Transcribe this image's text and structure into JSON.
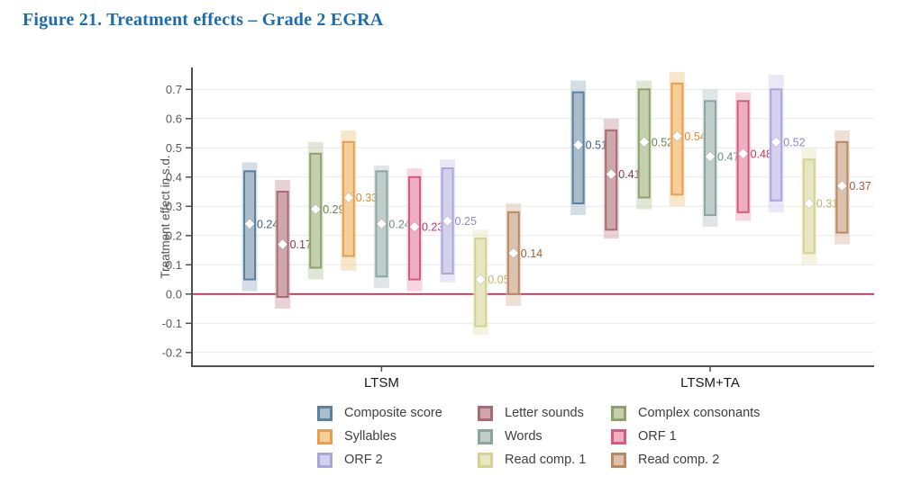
{
  "figure": {
    "title": "Figure 21. Treatment effects – Grade 2 EGRA",
    "title_color": "#1d6cad"
  },
  "chart_data": {
    "type": "bar",
    "subtype": "range-bars-with-point-estimates",
    "title": "Figure 21. Treatment effects – Grade 2 EGRA",
    "xlabel": "",
    "ylabel": "Treatment effect in s.d.",
    "ylim": [
      -0.25,
      0.78
    ],
    "yticks": [
      0.7,
      0.6,
      0.5,
      0.4,
      0.3,
      0.2,
      0.1,
      0.0,
      -0.1,
      -0.2
    ],
    "grid": "horizontal",
    "zero_line": {
      "value": 0.0,
      "color": "#bf3358"
    },
    "axis_color": "#4f4f4f",
    "grid_color": "#e9e9e9",
    "tick_label_color": "#595959",
    "group_label_color": "#1a1a1a",
    "legend_position": "bottom",
    "categories": [
      "LTSM",
      "LTSM+TA"
    ],
    "series": [
      {
        "name": "Composite score",
        "color": "#5b80a1",
        "fill": "#a9bdcb",
        "label_color": "#3d6183",
        "values": [
          {
            "group": "LTSM",
            "estimate": 0.24,
            "inner_ci": [
              0.05,
              0.42
            ],
            "outer_ci": [
              0.01,
              0.45
            ]
          },
          {
            "group": "LTSM+TA",
            "estimate": 0.51,
            "inner_ci": [
              0.31,
              0.69
            ],
            "outer_ci": [
              0.27,
              0.73
            ]
          }
        ]
      },
      {
        "name": "Letter sounds",
        "color": "#a96a72",
        "fill": "#d0a6ad",
        "label_color": "#8e3a48",
        "values": [
          {
            "group": "LTSM",
            "estimate": 0.17,
            "inner_ci": [
              -0.01,
              0.35
            ],
            "outer_ci": [
              -0.05,
              0.39
            ]
          },
          {
            "group": "LTSM+TA",
            "estimate": 0.41,
            "inner_ci": [
              0.22,
              0.56
            ],
            "outer_ci": [
              0.19,
              0.6
            ]
          }
        ]
      },
      {
        "name": "Complex consonants",
        "color": "#8ba26b",
        "fill": "#c3cfad",
        "label_color": "#6e8449",
        "values": [
          {
            "group": "LTSM",
            "estimate": 0.29,
            "inner_ci": [
              0.09,
              0.48
            ],
            "outer_ci": [
              0.05,
              0.52
            ]
          },
          {
            "group": "LTSM+TA",
            "estimate": 0.52,
            "inner_ci": [
              0.33,
              0.7
            ],
            "outer_ci": [
              0.29,
              0.73
            ]
          }
        ]
      },
      {
        "name": "Syllables",
        "color": "#e79f4d",
        "fill": "#f4cf9a",
        "label_color": "#e0892a",
        "values": [
          {
            "group": "LTSM",
            "estimate": 0.33,
            "inner_ci": [
              0.13,
              0.52
            ],
            "outer_ci": [
              0.08,
              0.56
            ]
          },
          {
            "group": "LTSM+TA",
            "estimate": 0.54,
            "inner_ci": [
              0.34,
              0.72
            ],
            "outer_ci": [
              0.3,
              0.76
            ]
          }
        ]
      },
      {
        "name": "Words",
        "color": "#8ba6a0",
        "fill": "#bfcecb",
        "label_color": "#708b86",
        "values": [
          {
            "group": "LTSM",
            "estimate": 0.24,
            "inner_ci": [
              0.06,
              0.42
            ],
            "outer_ci": [
              0.02,
              0.44
            ]
          },
          {
            "group": "LTSM+TA",
            "estimate": 0.47,
            "inner_ci": [
              0.27,
              0.66
            ],
            "outer_ci": [
              0.23,
              0.7
            ]
          }
        ]
      },
      {
        "name": "ORF 1",
        "color": "#d65a7e",
        "fill": "#eeafc2",
        "label_color": "#c9305a",
        "values": [
          {
            "group": "LTSM",
            "estimate": 0.23,
            "inner_ci": [
              0.05,
              0.4
            ],
            "outer_ci": [
              0.01,
              0.43
            ]
          },
          {
            "group": "LTSM+TA",
            "estimate": 0.48,
            "inner_ci": [
              0.28,
              0.66
            ],
            "outer_ci": [
              0.25,
              0.69
            ]
          }
        ]
      },
      {
        "name": "ORF 2",
        "color": "#aaa5da",
        "fill": "#d4d1ee",
        "label_color": "#8d88cc",
        "values": [
          {
            "group": "LTSM",
            "estimate": 0.25,
            "inner_ci": [
              0.07,
              0.43
            ],
            "outer_ci": [
              0.04,
              0.46
            ]
          },
          {
            "group": "LTSM+TA",
            "estimate": 0.52,
            "inner_ci": [
              0.32,
              0.7
            ],
            "outer_ci": [
              0.28,
              0.75
            ]
          }
        ]
      },
      {
        "name": "Read comp. 1",
        "color": "#d3d194",
        "fill": "#e9e7c2",
        "label_color": "#bcb76a",
        "values": [
          {
            "group": "LTSM",
            "estimate": 0.05,
            "inner_ci": [
              -0.11,
              0.19
            ],
            "outer_ci": [
              -0.14,
              0.22
            ]
          },
          {
            "group": "LTSM+TA",
            "estimate": 0.31,
            "inner_ci": [
              0.14,
              0.46
            ],
            "outer_ci": [
              0.1,
              0.5
            ]
          }
        ]
      },
      {
        "name": "Read comp. 2",
        "color": "#b98760",
        "fill": "#dcc2ae",
        "label_color": "#9e5d35",
        "values": [
          {
            "group": "LTSM",
            "estimate": 0.14,
            "inner_ci": [
              0.0,
              0.28
            ],
            "outer_ci": [
              -0.04,
              0.31
            ]
          },
          {
            "group": "LTSM+TA",
            "estimate": 0.37,
            "inner_ci": [
              0.21,
              0.52
            ],
            "outer_ci": [
              0.17,
              0.56
            ]
          }
        ]
      }
    ]
  }
}
